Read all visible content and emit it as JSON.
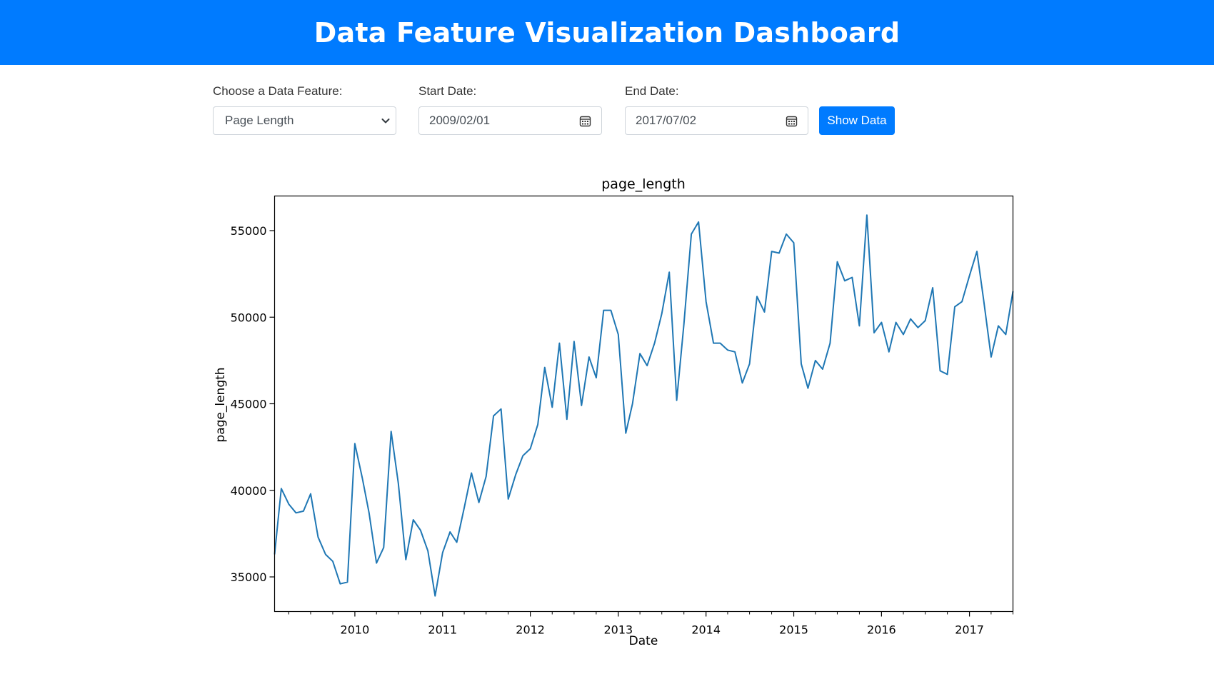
{
  "header": {
    "title": "Data Feature Visualization Dashboard"
  },
  "controls": {
    "feature_label": "Choose a Data Feature:",
    "feature_selected": "Page Length",
    "start_label": "Start Date:",
    "start_value": "2009/02/01",
    "end_label": "End Date:",
    "end_value": "2017/07/02",
    "show_button": "Show Data"
  },
  "colors": {
    "header": "#007bff",
    "button": "#007bff",
    "line": "#1f77b4"
  },
  "chart_data": {
    "type": "line",
    "title": "page_length",
    "xlabel": "Date",
    "ylabel": "page_length",
    "xlim": [
      "2009-02-01",
      "2017-07-01"
    ],
    "ylim": [
      33000,
      57000
    ],
    "x_ticks": [
      "2010",
      "2011",
      "2012",
      "2013",
      "2014",
      "2015",
      "2016",
      "2017"
    ],
    "y_ticks": [
      35000,
      40000,
      45000,
      50000,
      55000
    ],
    "grid": false,
    "x": [
      "2009-02",
      "2009-03",
      "2009-04",
      "2009-05",
      "2009-06",
      "2009-07",
      "2009-08",
      "2009-09",
      "2009-10",
      "2009-11",
      "2009-12",
      "2010-01",
      "2010-02",
      "2010-03",
      "2010-04",
      "2010-05",
      "2010-06",
      "2010-07",
      "2010-08",
      "2010-09",
      "2010-10",
      "2010-11",
      "2010-12",
      "2011-01",
      "2011-02",
      "2011-03",
      "2011-04",
      "2011-05",
      "2011-06",
      "2011-07",
      "2011-08",
      "2011-09",
      "2011-10",
      "2011-11",
      "2011-12",
      "2012-01",
      "2012-02",
      "2012-03",
      "2012-04",
      "2012-05",
      "2012-06",
      "2012-07",
      "2012-08",
      "2012-09",
      "2012-10",
      "2012-11",
      "2012-12",
      "2013-01",
      "2013-02",
      "2013-03",
      "2013-04",
      "2013-05",
      "2013-06",
      "2013-07",
      "2013-08",
      "2013-09",
      "2013-10",
      "2013-11",
      "2013-12",
      "2014-01",
      "2014-02",
      "2014-03",
      "2014-04",
      "2014-05",
      "2014-06",
      "2014-07",
      "2014-08",
      "2014-09",
      "2014-10",
      "2014-11",
      "2014-12",
      "2015-01",
      "2015-02",
      "2015-03",
      "2015-04",
      "2015-05",
      "2015-06",
      "2015-07",
      "2015-08",
      "2015-09",
      "2015-10",
      "2015-11",
      "2015-12",
      "2016-01",
      "2016-02",
      "2016-03",
      "2016-04",
      "2016-05",
      "2016-06",
      "2016-07",
      "2016-08",
      "2016-09",
      "2016-10",
      "2016-11",
      "2016-12",
      "2017-01",
      "2017-02",
      "2017-03",
      "2017-04",
      "2017-05",
      "2017-06",
      "2017-07"
    ],
    "series": [
      {
        "values": [
          36300,
          40100,
          39200,
          38700,
          38800,
          39800,
          37300,
          36300,
          35900,
          34600,
          34700,
          42700,
          40700,
          38700,
          35800,
          36700,
          43400,
          40400,
          36000,
          38300,
          37700,
          36500,
          33900,
          36400,
          37600,
          37000,
          39000,
          41000,
          39300,
          40800,
          44300,
          44700,
          39500,
          40900,
          42000,
          42400,
          43800,
          47100,
          44800,
          48500,
          44100,
          48600,
          44900,
          47700,
          46500,
          50400,
          50400,
          49000,
          43300,
          45000,
          47900,
          47200,
          48500,
          50200,
          52600,
          45200,
          49600,
          54800,
          55500,
          50900,
          48500,
          48500,
          48100,
          48000,
          46200,
          47300,
          51200,
          50300,
          53800,
          53700,
          54800,
          54300,
          47300,
          45900,
          47500,
          47000,
          48500,
          53200,
          52100,
          52300,
          49500,
          55900,
          49100,
          49700,
          48000,
          49700,
          49000,
          49900,
          49400,
          49800,
          51700,
          46900,
          46700,
          50600,
          50900,
          52400,
          53800,
          51000,
          47700,
          49500,
          49000,
          51500
        ]
      }
    ]
  }
}
